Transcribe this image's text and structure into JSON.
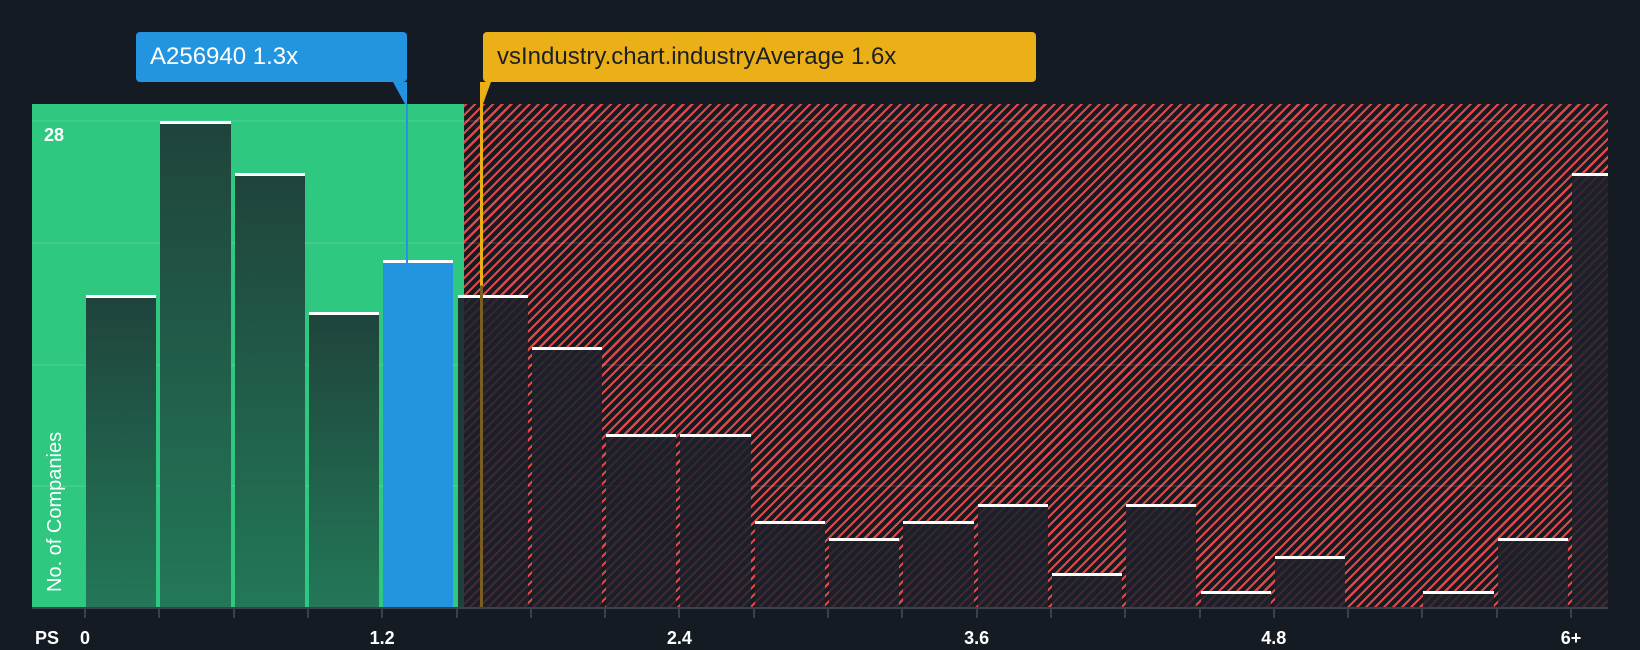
{
  "chart_data": {
    "type": "bar",
    "title": "",
    "xlabel": "PS",
    "ylabel": "No. of Companies",
    "ylim": [
      0,
      28
    ],
    "y_max_label": "28",
    "x_tick_labels": [
      "0",
      "1.2",
      "2.4",
      "3.6",
      "4.8",
      "6+"
    ],
    "x_tick_values": [
      0,
      1.2,
      2.4,
      3.6,
      4.8,
      6.0
    ],
    "bin_width": 0.3,
    "categories": [
      "0-0.3",
      "0.3-0.6",
      "0.6-0.9",
      "0.9-1.2",
      "1.2-1.5",
      "1.5-1.8",
      "1.8-2.1",
      "2.1-2.4",
      "2.4-2.7",
      "2.7-3.0",
      "3.0-3.3",
      "3.3-3.6",
      "3.6-3.9",
      "3.9-4.2",
      "4.2-4.5",
      "4.5-4.8",
      "4.8-5.1",
      "5.1-5.4",
      "5.4-5.7",
      "5.7-6.0",
      "6+"
    ],
    "values": [
      18,
      28,
      25,
      17,
      20,
      18,
      15,
      10,
      10,
      5,
      4,
      5,
      6,
      2,
      6,
      1,
      3,
      0,
      1,
      4,
      25
    ],
    "highlight_index": 4,
    "grid": true,
    "gridline_values": [
      7,
      14,
      21,
      28
    ],
    "fair_zone_end_x": 1.53,
    "markers": [
      {
        "name": "company",
        "label": "A256940 1.3x",
        "value": 1.3,
        "color": "#2394e0",
        "text_color": "#ffffff"
      },
      {
        "name": "industry-average",
        "label": "vsIndustry.chart.industryAverage 1.6x",
        "value": 1.6,
        "color": "#ebb018",
        "text_color": "#1c1f26"
      }
    ],
    "colors": {
      "fair_zone": "#2ec880",
      "over_zone_hatch": "#e04848",
      "background": "#151b23",
      "highlight_bar": "#2394e0"
    }
  }
}
